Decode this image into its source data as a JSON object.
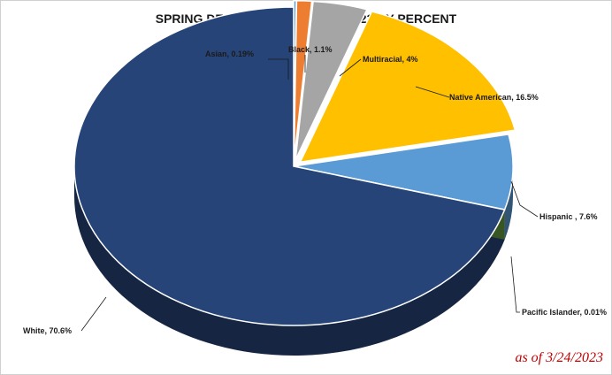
{
  "chart_data": {
    "type": "pie",
    "title": "SPRING DEMOGRAPHICS  FOR 22-23 BY PERCENT",
    "slices": [
      {
        "name": "Asian",
        "value": 0.19,
        "label": "Asian, 0.19%",
        "color": "#5b9bd5"
      },
      {
        "name": "Black",
        "value": 1.1,
        "label": "Black,  1.1%",
        "color": "#ed7d31"
      },
      {
        "name": "Multiracial",
        "value": 4,
        "label": "Multiracial,  4%",
        "color": "#a5a5a5"
      },
      {
        "name": "Native American",
        "value": 16.5,
        "label": "Native American, 16.5%",
        "color": "#ffc000"
      },
      {
        "name": "Hispanic",
        "value": 7.6,
        "label": "Hispanic  , 7.6%",
        "color": "#5b9bd5"
      },
      {
        "name": "Pacific Islander",
        "value": 0.01,
        "label": "Pacific Islander, 0.01%",
        "color": "#70ad47"
      },
      {
        "name": "White",
        "value": 70.6,
        "label": "White, 70.6%",
        "color": "#264478"
      }
    ],
    "exploded": [
      "Asian",
      "Black",
      "Multiracial",
      "Native American"
    ],
    "style": "3d-pie",
    "legend": "none"
  },
  "footnote": "as of 3/24/2023"
}
